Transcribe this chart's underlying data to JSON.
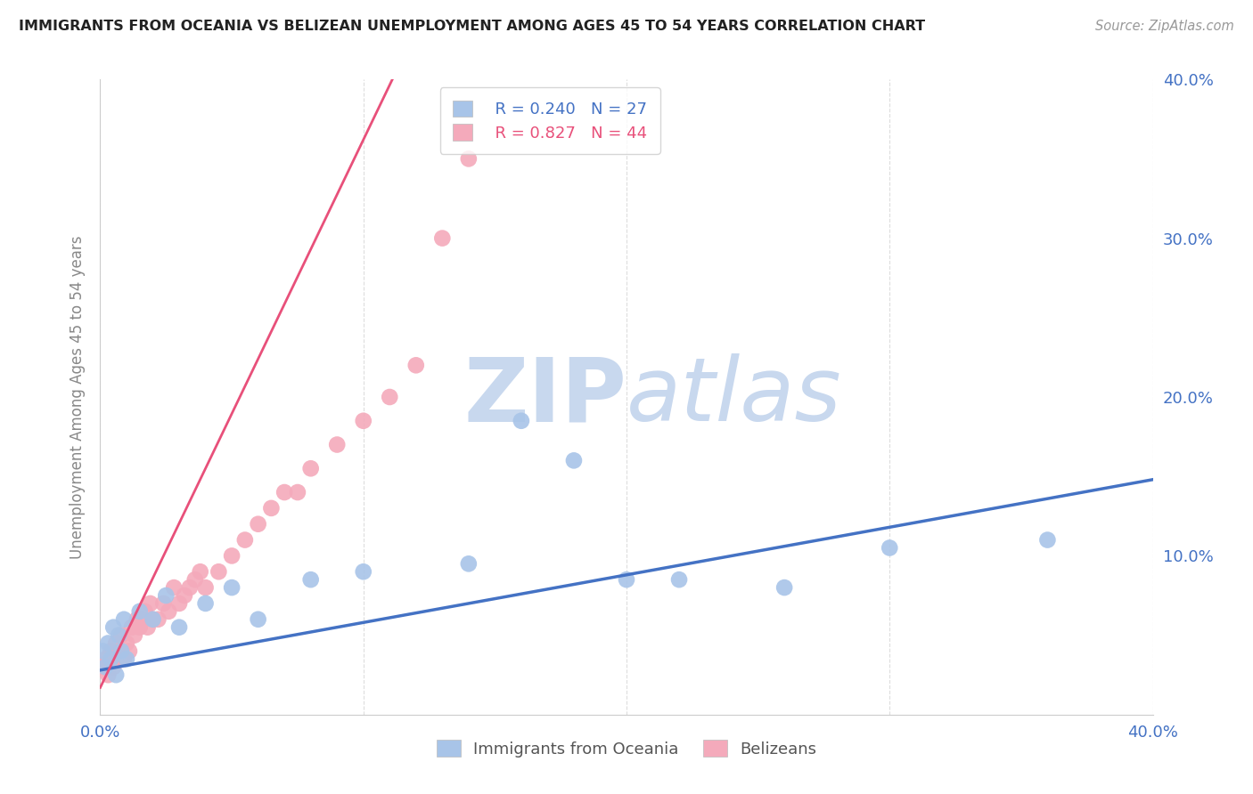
{
  "title": "IMMIGRANTS FROM OCEANIA VS BELIZEAN UNEMPLOYMENT AMONG AGES 45 TO 54 YEARS CORRELATION CHART",
  "source": "Source: ZipAtlas.com",
  "ylabel": "Unemployment Among Ages 45 to 54 years",
  "xlim": [
    0,
    0.4
  ],
  "ylim": [
    0,
    0.4
  ],
  "xticks": [
    0.0,
    0.1,
    0.2,
    0.3,
    0.4
  ],
  "xtick_labels_show": [
    "0.0%",
    "",
    "",
    "",
    "40.0%"
  ],
  "yticks_right": [
    0.0,
    0.1,
    0.2,
    0.3,
    0.4
  ],
  "ytick_labels_right": [
    "",
    "10.0%",
    "20.0%",
    "30.0%",
    "40.0%"
  ],
  "blue_color": "#A8C4E8",
  "pink_color": "#F4AABB",
  "blue_line_color": "#4472C4",
  "pink_line_color": "#E8507A",
  "blue_R": 0.24,
  "blue_N": 27,
  "pink_R": 0.827,
  "pink_N": 44,
  "watermark_zip": "ZIP",
  "watermark_atlas": "atlas",
  "watermark_color": "#C8D8EE",
  "blue_line_x0": 0.0,
  "blue_line_y0": 0.028,
  "blue_line_x1": 0.4,
  "blue_line_y1": 0.148,
  "pink_line_x0": 0.0,
  "pink_line_y0": 0.017,
  "pink_line_slope": 3.45,
  "blue_scatter_x": [
    0.001,
    0.002,
    0.003,
    0.004,
    0.005,
    0.006,
    0.007,
    0.008,
    0.009,
    0.01,
    0.015,
    0.02,
    0.025,
    0.03,
    0.04,
    0.05,
    0.06,
    0.08,
    0.1,
    0.14,
    0.16,
    0.18,
    0.2,
    0.22,
    0.26,
    0.3,
    0.36
  ],
  "blue_scatter_y": [
    0.04,
    0.03,
    0.045,
    0.035,
    0.055,
    0.025,
    0.05,
    0.04,
    0.06,
    0.035,
    0.065,
    0.06,
    0.075,
    0.055,
    0.07,
    0.08,
    0.06,
    0.085,
    0.09,
    0.095,
    0.185,
    0.16,
    0.085,
    0.085,
    0.08,
    0.105,
    0.11
  ],
  "pink_scatter_x": [
    0.001,
    0.002,
    0.003,
    0.004,
    0.005,
    0.006,
    0.007,
    0.008,
    0.009,
    0.01,
    0.011,
    0.012,
    0.013,
    0.014,
    0.015,
    0.016,
    0.017,
    0.018,
    0.019,
    0.02,
    0.022,
    0.024,
    0.026,
    0.028,
    0.03,
    0.032,
    0.034,
    0.036,
    0.038,
    0.04,
    0.045,
    0.05,
    0.055,
    0.06,
    0.065,
    0.07,
    0.075,
    0.08,
    0.09,
    0.1,
    0.11,
    0.12,
    0.13,
    0.14
  ],
  "pink_scatter_y": [
    0.03,
    0.035,
    0.025,
    0.04,
    0.03,
    0.045,
    0.04,
    0.05,
    0.035,
    0.045,
    0.04,
    0.055,
    0.05,
    0.06,
    0.055,
    0.06,
    0.065,
    0.055,
    0.07,
    0.06,
    0.06,
    0.07,
    0.065,
    0.08,
    0.07,
    0.075,
    0.08,
    0.085,
    0.09,
    0.08,
    0.09,
    0.1,
    0.11,
    0.12,
    0.13,
    0.14,
    0.14,
    0.155,
    0.17,
    0.185,
    0.2,
    0.22,
    0.3,
    0.35
  ]
}
